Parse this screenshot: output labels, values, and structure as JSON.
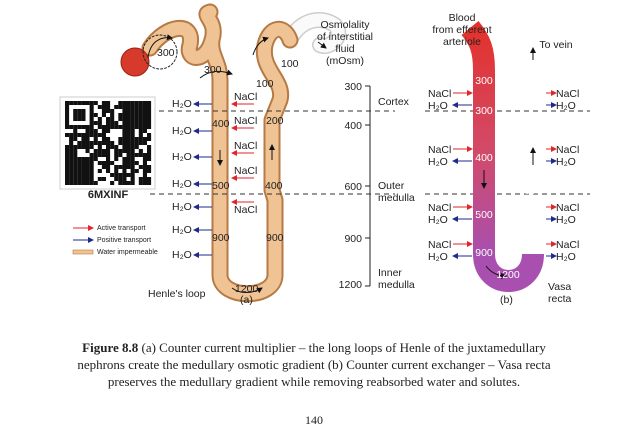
{
  "figure_a": {
    "glomerulus_value": 300,
    "values": [
      300,
      100,
      100,
      200,
      400,
      400,
      500,
      900,
      900,
      1200
    ],
    "nacl": [
      "NaCl",
      "NaCl",
      "NaCl",
      "NaCl",
      "NaCl"
    ],
    "h2o": [
      "H₂O",
      "H₂O",
      "H₂O",
      "H₂O",
      "H₂O",
      "H₂O",
      "H₂O"
    ],
    "loop_label": "Henle's loop",
    "panel": "(a)",
    "qr_label": "6MXINF",
    "legend": [
      "Active transport",
      "Positive transport",
      "Water impermeable"
    ]
  },
  "scale": {
    "title": [
      "Osmolality",
      "of interstitial",
      "fluid",
      "(mOsm)"
    ],
    "values": [
      300,
      400,
      600,
      900,
      1200
    ],
    "zones": [
      "Cortex",
      "Outer",
      "medulla",
      "Inner",
      "medulla"
    ]
  },
  "figure_b": {
    "inflow": [
      "Blood",
      "from efferent",
      "arteriole"
    ],
    "outflow": "To vein",
    "descending": [
      300,
      300,
      400,
      500,
      900,
      1200
    ],
    "ascending": [
      325,
      400,
      600,
      900
    ],
    "left_labels": [
      "NaCl",
      "H₂O",
      "NaCl",
      "H₂O",
      "NaCl",
      "H₂O",
      "NaCl",
      "H₂O"
    ],
    "right_labels": [
      "NaCl",
      "H₂O",
      "NaCl",
      "H₂O",
      "NaCl",
      "H₂O",
      "NaCl",
      "H₂O"
    ],
    "vessel": [
      "Vasa",
      "recta"
    ],
    "panel": "(b)"
  },
  "caption": {
    "label": "Figure 8.8",
    "lines": [
      " (a) Counter current multiplier – the long loops of Henle of the juxtamedullary",
      "nephrons create the medullary osmotic gradient (b) Counter current exchanger – Vasa recta",
      "preserves the medullary gradient while removing reabsorbed water and solutes."
    ]
  },
  "page_number": 140
}
